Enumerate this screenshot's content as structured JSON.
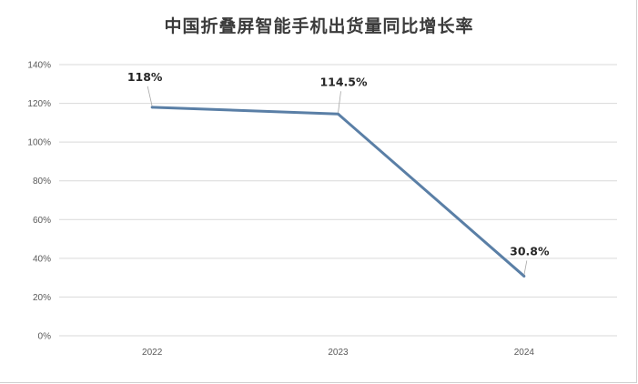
{
  "chart_data": {
    "type": "line",
    "title": "中国折叠屏智能手机出货量同比增长率",
    "xlabel": "",
    "ylabel": "",
    "categories": [
      "2022",
      "2023",
      "2024"
    ],
    "series": [
      {
        "values": [
          118,
          114.5,
          30.8
        ],
        "data_labels": [
          "118%",
          "114.5%",
          "30.8%"
        ]
      }
    ],
    "ylim": [
      0,
      140
    ],
    "yticks": [
      "0%",
      "20%",
      "40%",
      "60%",
      "80%",
      "100%",
      "120%",
      "140%"
    ],
    "grid": true,
    "legend": "none",
    "line_color": "#5a7fa6",
    "grid_color": "#d9d9d9"
  }
}
